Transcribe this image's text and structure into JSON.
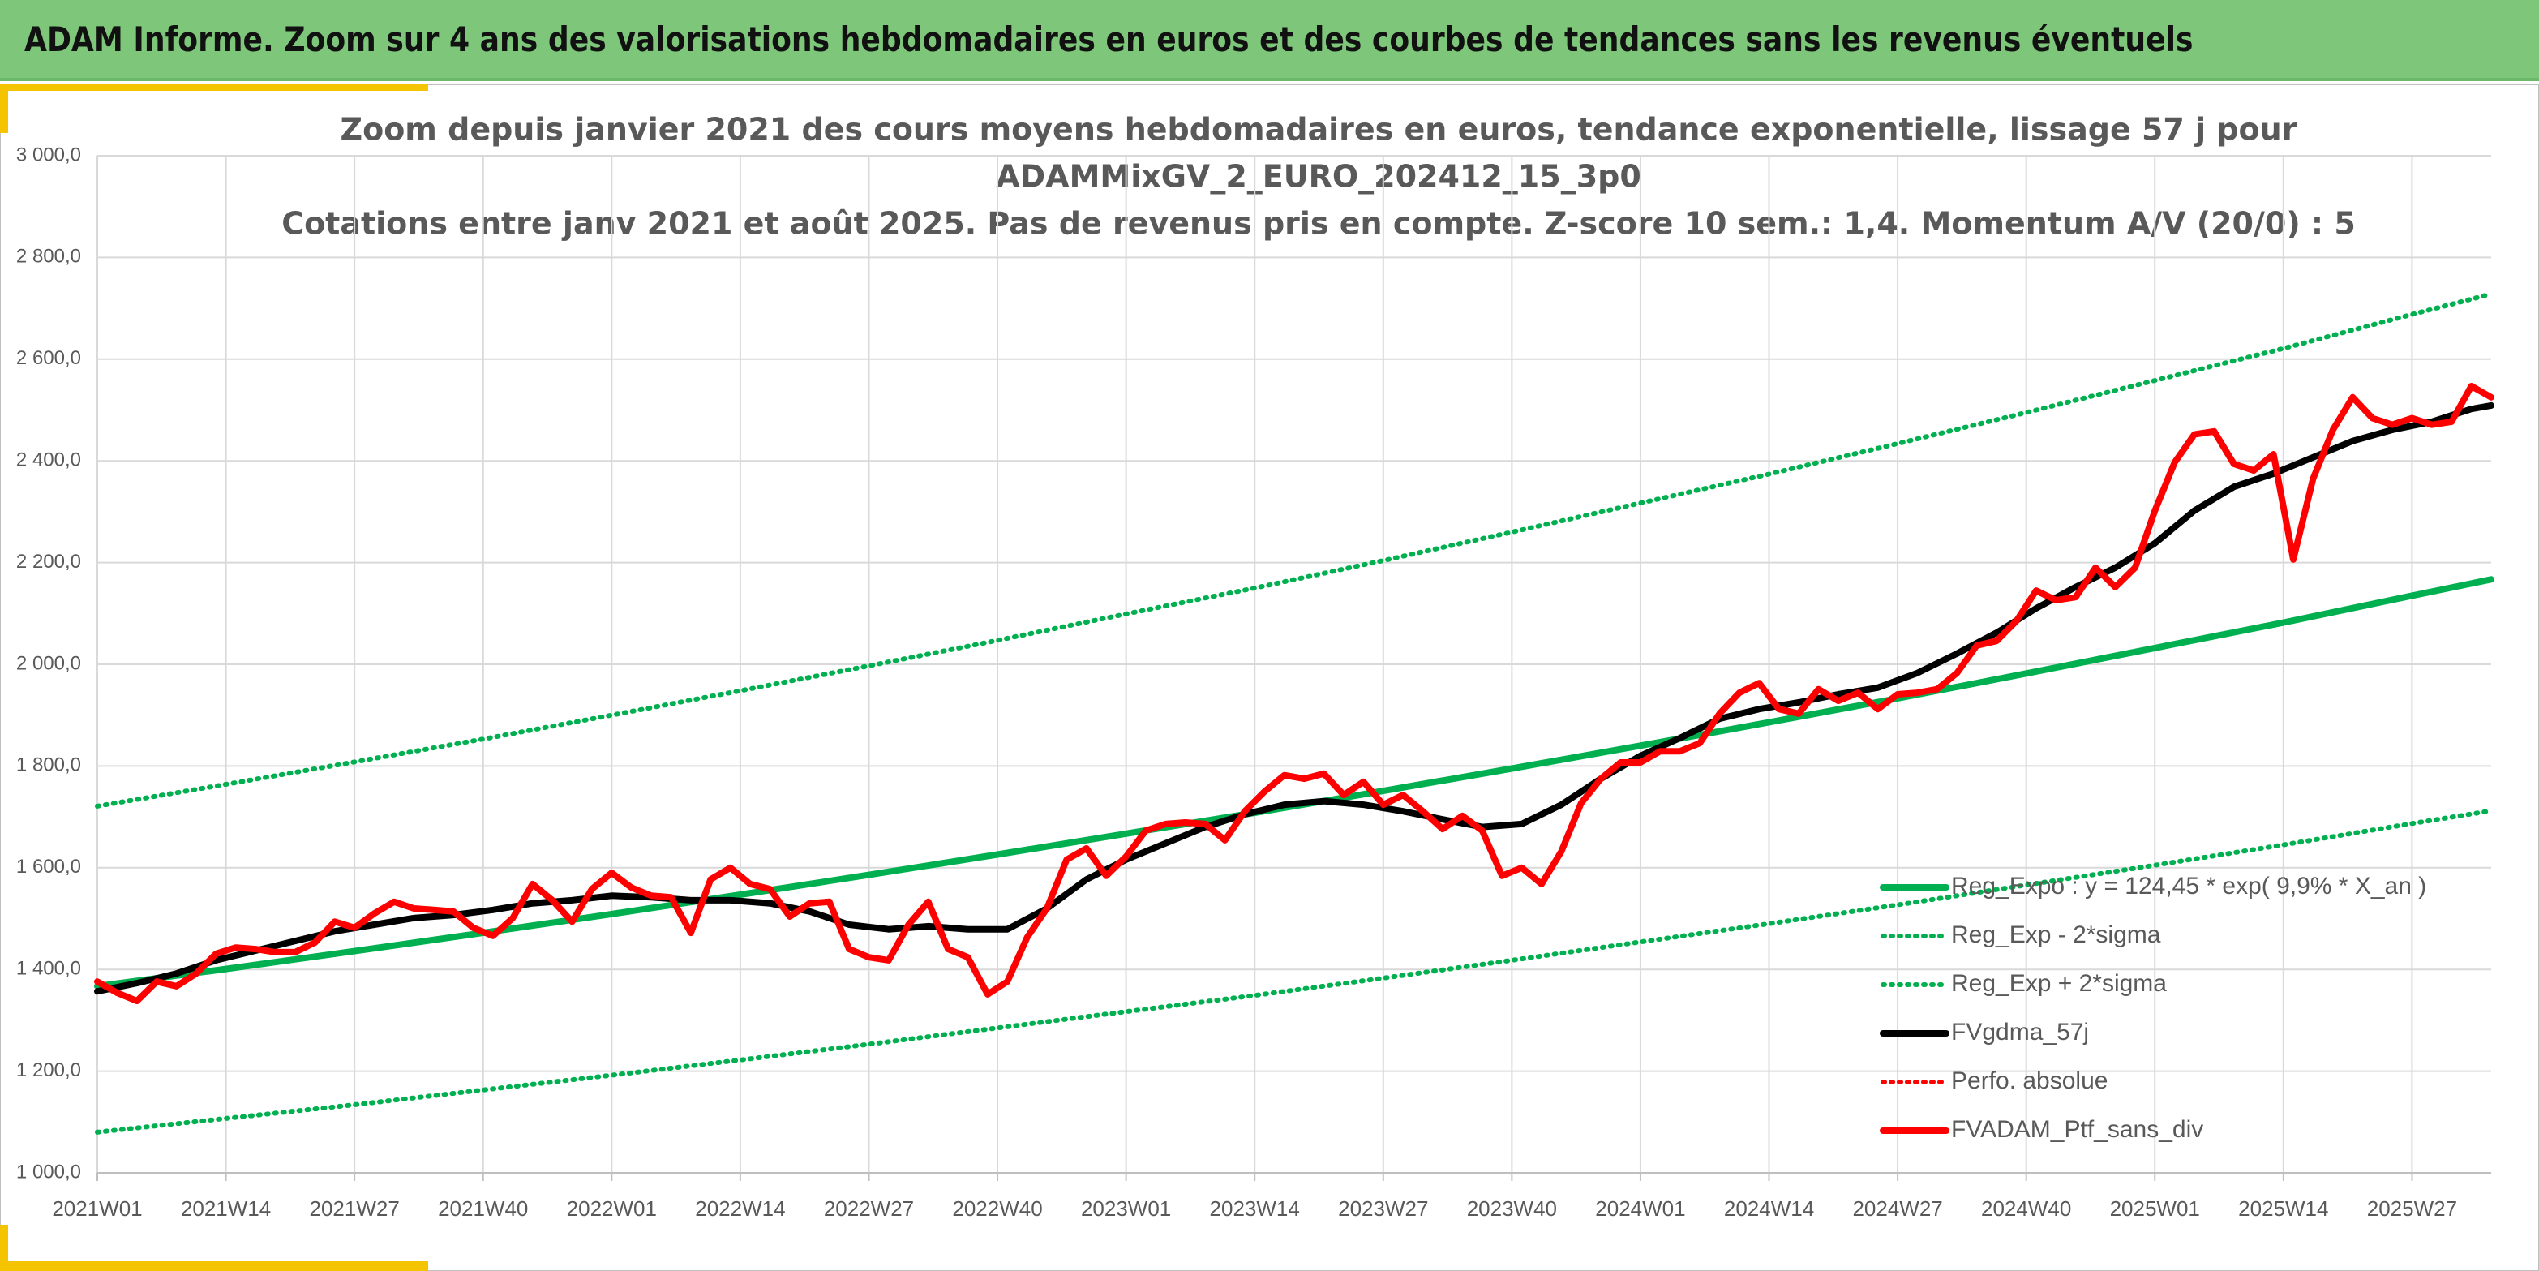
{
  "header": {
    "title": "ADAM Informe. Zoom sur 4 ans des valorisations hebdomadaires en euros et des courbes de tendances sans les revenus éventuels"
  },
  "chart_data": {
    "type": "line",
    "title": [
      "Zoom depuis janvier 2021 des cours moyens hebdomadaires en euros, tendance exponentielle, lissage 57 j pour",
      "ADAMMixGV_2_EURO_202412_15_3p0",
      "Cotations entre janv 2021 et août 2025. Pas de revenus pris en compte. Z-score 10 sem.: 1,4. Momentum A/V (20/0) : 5"
    ],
    "xlim": [
      0,
      242
    ],
    "xticks": [
      {
        "value": 0,
        "label": "2021W01"
      },
      {
        "value": 13,
        "label": "2021W14"
      },
      {
        "value": 26,
        "label": "2021W27"
      },
      {
        "value": 39,
        "label": "2021W40"
      },
      {
        "value": 52,
        "label": "2022W01"
      },
      {
        "value": 65,
        "label": "2022W14"
      },
      {
        "value": 78,
        "label": "2022W27"
      },
      {
        "value": 91,
        "label": "2022W40"
      },
      {
        "value": 104,
        "label": "2023W01"
      },
      {
        "value": 117,
        "label": "2023W14"
      },
      {
        "value": 130,
        "label": "2023W27"
      },
      {
        "value": 143,
        "label": "2023W40"
      },
      {
        "value": 156,
        "label": "2024W01"
      },
      {
        "value": 169,
        "label": "2024W14"
      },
      {
        "value": 182,
        "label": "2024W27"
      },
      {
        "value": 195,
        "label": "2024W40"
      },
      {
        "value": 208,
        "label": "2025W01"
      },
      {
        "value": 221,
        "label": "2025W14"
      },
      {
        "value": 234,
        "label": "2025W27"
      }
    ],
    "ylim": [
      1000,
      3000
    ],
    "yticks": [
      {
        "value": 1000,
        "label": "1 000,0"
      },
      {
        "value": 1200,
        "label": "1 200,0"
      },
      {
        "value": 1400,
        "label": "1 400,0"
      },
      {
        "value": 1600,
        "label": "1 600,0"
      },
      {
        "value": 1800,
        "label": "1 800,0"
      },
      {
        "value": 2000,
        "label": "2 000,0"
      },
      {
        "value": 2200,
        "label": "2 200,0"
      },
      {
        "value": 2400,
        "label": "2 400,0"
      },
      {
        "value": 2600,
        "label": "2 600,0"
      },
      {
        "value": 2800,
        "label": "2 800,0"
      },
      {
        "value": 3000,
        "label": "3 000,0"
      }
    ],
    "grid": true,
    "legend": "right",
    "series": [
      {
        "name": "Reg_Expo : y = 124,45 * exp( 9,9% *  X_an )",
        "color": "#00b050",
        "dash": "solid",
        "x": [
          0,
          13,
          26,
          39,
          52,
          65,
          78,
          91,
          104,
          117,
          130,
          143,
          156,
          169,
          182,
          195,
          208,
          221,
          234,
          242
        ],
        "values": [
          1367,
          1401,
          1436,
          1472,
          1509,
          1547,
          1586,
          1626,
          1667,
          1708,
          1751,
          1795,
          1840,
          1886,
          1933,
          1982,
          2032,
          2082,
          2135,
          2167
        ]
      },
      {
        "name": "Reg_Exp - 2*sigma",
        "color": "#00b050",
        "dash": "dotted",
        "x": [
          0,
          13,
          26,
          39,
          52,
          65,
          78,
          91,
          104,
          117,
          130,
          143,
          156,
          169,
          182,
          195,
          208,
          221,
          234,
          242
        ],
        "values": [
          1080,
          1107,
          1134,
          1163,
          1192,
          1222,
          1253,
          1285,
          1317,
          1349,
          1383,
          1418,
          1454,
          1490,
          1527,
          1566,
          1605,
          1645,
          1687,
          1712
        ]
      },
      {
        "name": "Reg_Exp + 2*sigma",
        "color": "#00b050",
        "dash": "dotted",
        "x": [
          0,
          13,
          26,
          39,
          52,
          65,
          78,
          91,
          104,
          117,
          130,
          143,
          156,
          169,
          182,
          195,
          208,
          221,
          234,
          242
        ],
        "values": [
          1721,
          1764,
          1808,
          1853,
          1900,
          1948,
          1997,
          2047,
          2099,
          2150,
          2204,
          2260,
          2317,
          2374,
          2434,
          2495,
          2558,
          2621,
          2688,
          2728
        ]
      },
      {
        "name": "FVgdma_57j",
        "color": "#000000",
        "dash": "solid",
        "x": [
          0,
          4,
          8,
          12,
          16,
          20,
          24,
          28,
          32,
          36,
          40,
          44,
          48,
          52,
          56,
          60,
          64,
          68,
          72,
          76,
          80,
          84,
          88,
          92,
          96,
          100,
          104,
          108,
          112,
          116,
          120,
          124,
          128,
          132,
          136,
          140,
          144,
          148,
          152,
          156,
          160,
          164,
          168,
          172,
          176,
          180,
          184,
          188,
          192,
          196,
          200,
          204,
          208,
          212,
          216,
          220,
          224,
          228,
          232,
          236,
          240,
          242
        ],
        "values": [
          1357,
          1373,
          1392,
          1418,
          1437,
          1456,
          1475,
          1488,
          1501,
          1507,
          1517,
          1530,
          1536,
          1545,
          1542,
          1536,
          1536,
          1530,
          1514,
          1488,
          1479,
          1485,
          1479,
          1479,
          1520,
          1577,
          1616,
          1648,
          1680,
          1705,
          1724,
          1731,
          1724,
          1711,
          1695,
          1680,
          1686,
          1724,
          1775,
          1820,
          1855,
          1893,
          1912,
          1925,
          1941,
          1954,
          1983,
          2021,
          2062,
          2110,
          2152,
          2190,
          2238,
          2302,
          2349,
          2375,
          2407,
          2439,
          2461,
          2477,
          2502,
          2509
        ]
      },
      {
        "name": "Perfo. absolue",
        "color": "#ff0000",
        "dash": "dotted"
      },
      {
        "name": "FVADAM_Ptf_sans_div",
        "color": "#ff0000",
        "dash": "solid",
        "x": [
          0,
          2,
          4,
          6,
          8,
          10,
          12,
          14,
          16,
          18,
          20,
          22,
          24,
          26,
          28,
          30,
          32,
          34,
          36,
          38,
          40,
          42,
          44,
          46,
          48,
          50,
          52,
          54,
          56,
          58,
          60,
          62,
          64,
          66,
          68,
          70,
          72,
          74,
          76,
          78,
          80,
          82,
          84,
          86,
          88,
          90,
          92,
          94,
          96,
          98,
          100,
          102,
          104,
          106,
          108,
          110,
          112,
          114,
          116,
          118,
          120,
          122,
          124,
          126,
          128,
          130,
          132,
          134,
          136,
          138,
          140,
          142,
          144,
          146,
          148,
          150,
          152,
          154,
          156,
          158,
          160,
          162,
          164,
          166,
          168,
          170,
          172,
          174,
          176,
          178,
          180,
          182,
          184,
          186,
          188,
          190,
          192,
          194,
          196,
          198,
          200,
          202,
          204,
          206,
          208,
          210,
          212,
          214,
          216,
          218,
          220,
          222,
          224,
          226,
          228,
          230,
          232,
          234,
          236,
          238,
          240,
          242
        ],
        "values": [
          1376,
          1354,
          1338,
          1376,
          1367,
          1392,
          1431,
          1443,
          1440,
          1434,
          1434,
          1453,
          1494,
          1482,
          1510,
          1533,
          1520,
          1517,
          1514,
          1482,
          1466,
          1501,
          1568,
          1536,
          1494,
          1558,
          1590,
          1561,
          1545,
          1542,
          1472,
          1577,
          1600,
          1568,
          1558,
          1504,
          1530,
          1533,
          1440,
          1424,
          1418,
          1488,
          1533,
          1440,
          1424,
          1351,
          1376,
          1463,
          1520,
          1616,
          1638,
          1584,
          1622,
          1673,
          1686,
          1689,
          1686,
          1654,
          1711,
          1750,
          1782,
          1775,
          1785,
          1743,
          1769,
          1724,
          1743,
          1711,
          1676,
          1702,
          1673,
          1584,
          1600,
          1568,
          1632,
          1727,
          1775,
          1807,
          1807,
          1829,
          1829,
          1845,
          1903,
          1944,
          1963,
          1912,
          1903,
          1951,
          1928,
          1944,
          1912,
          1941,
          1944,
          1951,
          1983,
          2037,
          2046,
          2085,
          2145,
          2126,
          2132,
          2190,
          2152,
          2190,
          2302,
          2397,
          2452,
          2458,
          2394,
          2381,
          2413,
          2206,
          2365,
          2461,
          2525,
          2484,
          2471,
          2484,
          2471,
          2477,
          2547,
          2525
        ]
      }
    ]
  }
}
